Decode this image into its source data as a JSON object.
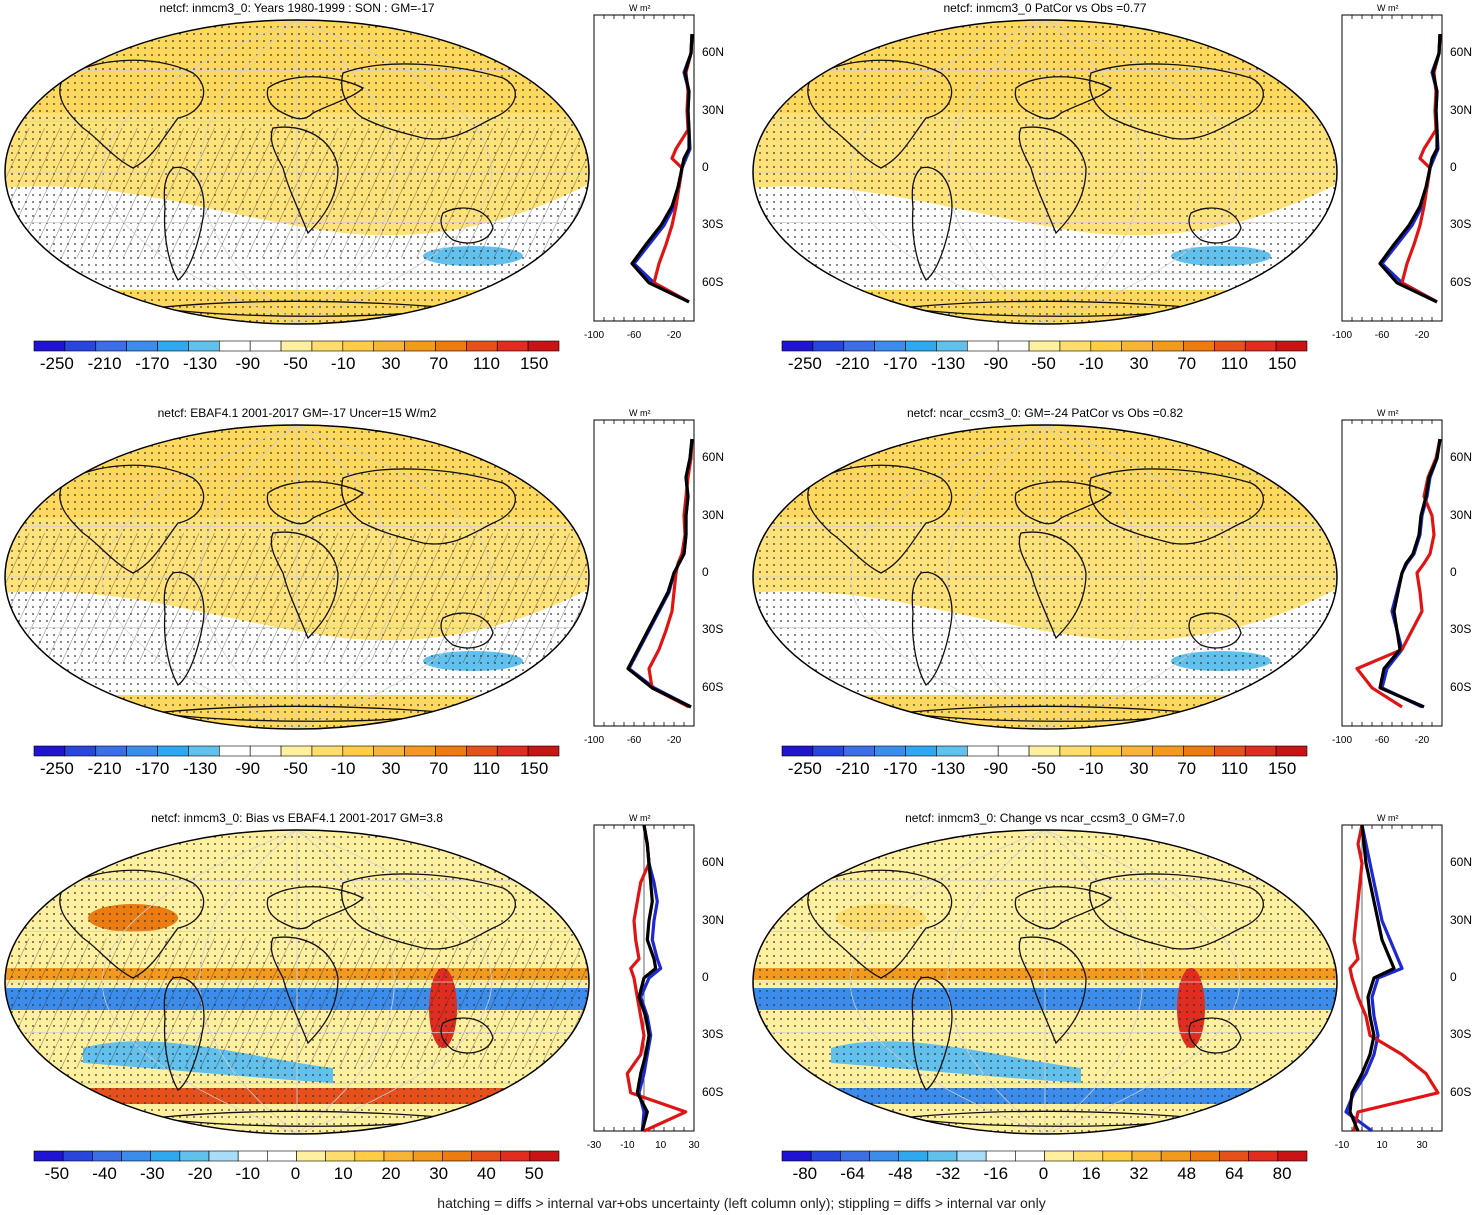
{
  "chart_data": [
    {
      "type": "heatmap",
      "title": "netcf: inmcm3_0: Years 1980-1999 : SON : GM=-17",
      "colorbar": [
        "-250",
        "-210",
        "-170",
        "-130",
        "-90",
        "-50",
        "-10",
        "30",
        "70",
        "110",
        "150"
      ],
      "profile": {
        "xticks": [
          "-100",
          "-60",
          "-20"
        ],
        "xlim": [
          -100,
          0
        ],
        "unit": "W m²",
        "lat_labels": [
          "60N",
          "30N",
          "0",
          "30S",
          "60S"
        ],
        "series": [
          {
            "name": "model",
            "color": "#1e28d2",
            "lat": [
              70,
              60,
              50,
              40,
              30,
              20,
              10,
              5,
              0,
              -10,
              -20,
              -30,
              -40,
              -50,
              -60,
              -70
            ],
            "values": [
              -2,
              -3,
              -10,
              -5,
              -6,
              -5,
              -4,
              -8,
              -12,
              -15,
              -20,
              -30,
              -45,
              -60,
              -40,
              -5
            ]
          },
          {
            "name": "obs",
            "color": "#e11414",
            "lat": [
              70,
              60,
              50,
              40,
              30,
              20,
              10,
              5,
              0,
              -10,
              -20,
              -30,
              -40,
              -50,
              -60,
              -70
            ],
            "values": [
              -2,
              -3,
              -8,
              -6,
              -7,
              -6,
              -18,
              -22,
              -12,
              -15,
              -18,
              -22,
              -28,
              -35,
              -40,
              -5
            ]
          },
          {
            "name": "ref",
            "color": "#000000",
            "lat": [
              70,
              60,
              50,
              40,
              30,
              20,
              10,
              5,
              0,
              -10,
              -20,
              -30,
              -40,
              -50,
              -60,
              -70
            ],
            "values": [
              -2,
              -3,
              -9,
              -5,
              -6,
              -5,
              -5,
              -10,
              -12,
              -16,
              -22,
              -33,
              -48,
              -62,
              -45,
              -5
            ]
          }
        ]
      }
    },
    {
      "type": "heatmap",
      "title": "netcf: inmcm3_0 PatCor vs Obs =0.77",
      "colorbar": [
        "-250",
        "-210",
        "-170",
        "-130",
        "-90",
        "-50",
        "-10",
        "30",
        "70",
        "110",
        "150"
      ],
      "profile": {
        "xticks": [
          "-100",
          "-60",
          "-20"
        ],
        "xlim": [
          -100,
          0
        ],
        "unit": "W m²",
        "lat_labels": [
          "60N",
          "30N",
          "0",
          "30S",
          "60S"
        ],
        "series": [
          {
            "name": "model",
            "color": "#1e28d2",
            "lat": [
              70,
              60,
              50,
              40,
              30,
              20,
              10,
              5,
              0,
              -10,
              -20,
              -30,
              -40,
              -50,
              -60,
              -70
            ],
            "values": [
              -2,
              -3,
              -10,
              -5,
              -6,
              -5,
              -4,
              -8,
              -12,
              -15,
              -20,
              -30,
              -45,
              -60,
              -40,
              -5
            ]
          },
          {
            "name": "obs",
            "color": "#e11414",
            "lat": [
              70,
              60,
              50,
              40,
              30,
              20,
              10,
              5,
              0,
              -10,
              -20,
              -30,
              -40,
              -50,
              -60,
              -70
            ],
            "values": [
              -2,
              -3,
              -8,
              -6,
              -7,
              -6,
              -18,
              -22,
              -12,
              -15,
              -18,
              -22,
              -28,
              -35,
              -40,
              -5
            ]
          },
          {
            "name": "ref",
            "color": "#000000",
            "lat": [
              70,
              60,
              50,
              40,
              30,
              20,
              10,
              5,
              0,
              -10,
              -20,
              -30,
              -40,
              -50,
              -60,
              -70
            ],
            "values": [
              -2,
              -3,
              -9,
              -5,
              -6,
              -5,
              -5,
              -10,
              -12,
              -16,
              -22,
              -33,
              -48,
              -62,
              -45,
              -5
            ]
          }
        ]
      }
    },
    {
      "type": "heatmap",
      "title": "netcf: EBAF4.1 2001-2017 GM=-17 Uncer=15 W/m2",
      "colorbar": [
        "-250",
        "-210",
        "-170",
        "-130",
        "-90",
        "-50",
        "-10",
        "30",
        "70",
        "110",
        "150"
      ],
      "profile": {
        "xticks": [
          "-100",
          "-60",
          "-20"
        ],
        "xlim": [
          -100,
          0
        ],
        "unit": "W m²",
        "lat_labels": [
          "60N",
          "30N",
          "0",
          "30S",
          "60S"
        ],
        "series": [
          {
            "name": "model",
            "color": "#1e28d2",
            "lat": [
              70,
              60,
              50,
              40,
              30,
              20,
              10,
              5,
              0,
              -10,
              -20,
              -30,
              -40,
              -50,
              -60,
              -70
            ],
            "values": [
              -2,
              -4,
              -8,
              -6,
              -8,
              -8,
              -10,
              -15,
              -20,
              -25,
              -35,
              -45,
              -55,
              -65,
              -40,
              -3
            ]
          },
          {
            "name": "obs",
            "color": "#e11414",
            "lat": [
              70,
              60,
              50,
              40,
              30,
              20,
              10,
              5,
              0,
              -10,
              -20,
              -30,
              -40,
              -50,
              -60,
              -70
            ],
            "values": [
              -2,
              -3,
              -6,
              -8,
              -10,
              -9,
              -12,
              -16,
              -18,
              -20,
              -22,
              -28,
              -35,
              -45,
              -42,
              -5
            ]
          },
          {
            "name": "ref",
            "color": "#000000",
            "lat": [
              70,
              60,
              50,
              40,
              30,
              20,
              10,
              5,
              0,
              -10,
              -20,
              -30,
              -40,
              -50,
              -60,
              -70
            ],
            "values": [
              -2,
              -4,
              -8,
              -6,
              -8,
              -8,
              -10,
              -15,
              -20,
              -26,
              -36,
              -46,
              -56,
              -66,
              -42,
              -3
            ]
          }
        ]
      }
    },
    {
      "type": "heatmap",
      "title": "netcf: ncar_ccsm3_0: GM=-24 PatCor vs Obs =0.82",
      "colorbar": [
        "-250",
        "-210",
        "-170",
        "-130",
        "-90",
        "-50",
        "-10",
        "30",
        "70",
        "110",
        "150"
      ],
      "profile": {
        "xticks": [
          "-100",
          "-60",
          "-20"
        ],
        "xlim": [
          -100,
          0
        ],
        "unit": "W m²",
        "lat_labels": [
          "60N",
          "30N",
          "0",
          "30S",
          "60S"
        ],
        "series": [
          {
            "name": "model",
            "color": "#1e28d2",
            "lat": [
              70,
              60,
              50,
              40,
              30,
              20,
              10,
              5,
              0,
              -10,
              -20,
              -30,
              -40,
              -50,
              -60,
              -70
            ],
            "values": [
              -2,
              -5,
              -12,
              -15,
              -20,
              -22,
              -28,
              -35,
              -40,
              -45,
              -50,
              -45,
              -40,
              -55,
              -60,
              -20
            ]
          },
          {
            "name": "obs",
            "color": "#e11414",
            "lat": [
              70,
              60,
              50,
              40,
              30,
              20,
              10,
              5,
              0,
              -10,
              -20,
              -30,
              -40,
              -50,
              -60,
              -70
            ],
            "values": [
              -2,
              -6,
              -14,
              -18,
              -10,
              -8,
              -12,
              -18,
              -25,
              -22,
              -20,
              -30,
              -40,
              -85,
              -70,
              -40
            ]
          },
          {
            "name": "ref",
            "color": "#000000",
            "lat": [
              70,
              60,
              50,
              40,
              30,
              20,
              10,
              5,
              0,
              -10,
              -20,
              -30,
              -40,
              -50,
              -60,
              -70
            ],
            "values": [
              -2,
              -5,
              -13,
              -16,
              -21,
              -23,
              -29,
              -36,
              -40,
              -44,
              -48,
              -45,
              -42,
              -58,
              -62,
              -18
            ]
          }
        ]
      }
    },
    {
      "type": "heatmap",
      "title": "netcf: inmcm3_0: Bias vs EBAF4.1 2001-2017  GM=3.8",
      "colorbar": [
        "-50",
        "-40",
        "-30",
        "-20",
        "-10",
        "0",
        "10",
        "20",
        "30",
        "40",
        "50"
      ],
      "profile": {
        "xticks": [
          "-30",
          "-10",
          "10",
          "30"
        ],
        "xlim": [
          -30,
          30
        ],
        "unit": "W m²",
        "lat_labels": [
          "60N",
          "30N",
          "0",
          "30S",
          "60S"
        ],
        "series": [
          {
            "name": "model",
            "color": "#1e28d2",
            "lat": [
              80,
              70,
              60,
              50,
              40,
              30,
              20,
              10,
              5,
              0,
              -10,
              -20,
              -30,
              -40,
              -50,
              -60,
              -70,
              -80
            ],
            "values": [
              0,
              2,
              3,
              6,
              8,
              6,
              5,
              8,
              10,
              3,
              -2,
              2,
              4,
              2,
              0,
              -3,
              0,
              -1
            ]
          },
          {
            "name": "obs",
            "color": "#e11414",
            "lat": [
              80,
              70,
              60,
              50,
              40,
              30,
              20,
              10,
              5,
              0,
              -10,
              -20,
              -30,
              -40,
              -50,
              -60,
              -70,
              -80
            ],
            "values": [
              0,
              2,
              3,
              -2,
              -4,
              -6,
              -5,
              -3,
              -8,
              -6,
              -4,
              -2,
              0,
              -2,
              -10,
              -8,
              25,
              0
            ]
          },
          {
            "name": "ref",
            "color": "#000000",
            "lat": [
              80,
              70,
              60,
              50,
              40,
              30,
              20,
              10,
              5,
              0,
              -10,
              -20,
              -30,
              -40,
              -50,
              -60,
              -70,
              -80
            ],
            "values": [
              0,
              2,
              3,
              4,
              5,
              3,
              2,
              6,
              7,
              0,
              -3,
              1,
              3,
              1,
              -2,
              -4,
              2,
              -1
            ]
          }
        ]
      }
    },
    {
      "type": "heatmap",
      "title": "netcf: inmcm3_0: Change vs ncar_ccsm3_0 GM=7.0",
      "colorbar": [
        "-80",
        "-64",
        "-48",
        "-32",
        "-16",
        "0",
        "16",
        "32",
        "48",
        "64",
        "80"
      ],
      "profile": {
        "xticks": [
          "-10",
          "10",
          "30"
        ],
        "xlim": [
          -10,
          40
        ],
        "unit": "W m²",
        "lat_labels": [
          "60N",
          "30N",
          "0",
          "30S",
          "60S"
        ],
        "series": [
          {
            "name": "model",
            "color": "#1e28d2",
            "lat": [
              80,
              70,
              60,
              50,
              40,
              30,
              20,
              10,
              5,
              0,
              -10,
              -20,
              -30,
              -40,
              -50,
              -60,
              -70,
              -80
            ],
            "values": [
              0,
              2,
              4,
              6,
              8,
              10,
              14,
              18,
              20,
              8,
              5,
              6,
              8,
              6,
              2,
              -4,
              -8,
              5
            ]
          },
          {
            "name": "obs",
            "color": "#e11414",
            "lat": [
              80,
              70,
              60,
              50,
              40,
              30,
              20,
              10,
              5,
              0,
              -10,
              -20,
              -30,
              -40,
              -50,
              -60,
              -70,
              -80
            ],
            "values": [
              0,
              -2,
              0,
              -1,
              -2,
              -3,
              -4,
              -2,
              -6,
              -5,
              -2,
              2,
              4,
              20,
              32,
              38,
              -2,
              -4
            ]
          },
          {
            "name": "ref",
            "color": "#000000",
            "lat": [
              80,
              70,
              60,
              50,
              40,
              30,
              20,
              10,
              5,
              0,
              -10,
              -20,
              -30,
              -40,
              -50,
              -60,
              -70,
              -80
            ],
            "values": [
              0,
              1,
              2,
              4,
              6,
              8,
              10,
              14,
              16,
              6,
              3,
              4,
              6,
              4,
              0,
              -5,
              -6,
              -2
            ]
          }
        ]
      }
    }
  ],
  "footer": "hatching = diffs > internal var+obs uncertainty (left column only); stippling = diffs > internal var only",
  "colors": {
    "colorbar_abs": [
      "#1e14d2",
      "#2846dc",
      "#3c6ee6",
      "#3c8cec",
      "#30a8f0",
      "#62c0ec",
      "#ffffff",
      "#ffffff",
      "#fff0a0",
      "#ffdc6e",
      "#ffcc44",
      "#f7b436",
      "#f29a1e",
      "#ec7c10",
      "#e6501a",
      "#e12c20",
      "#c81414"
    ],
    "colorbar_diff": [
      "#1e14d2",
      "#2846dc",
      "#3c6ee6",
      "#3c8cec",
      "#30a8f0",
      "#62c0ec",
      "#a8dcf8",
      "#ffffff",
      "#ffffff",
      "#fff0a0",
      "#ffdc6e",
      "#ffcc44",
      "#f7b436",
      "#f29a1e",
      "#ec7c10",
      "#e6501a",
      "#e12c20",
      "#c81414"
    ]
  }
}
